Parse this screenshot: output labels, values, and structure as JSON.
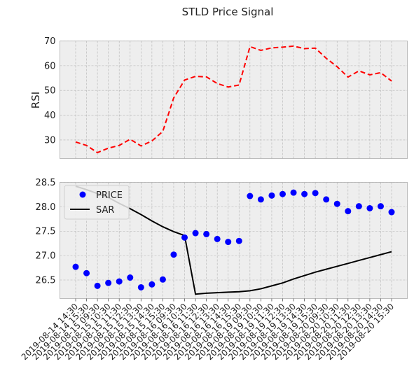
{
  "figure": {
    "title": "STLD Price Signal"
  },
  "chart_data": [
    {
      "type": "line",
      "ylabel": "RSI",
      "ylim": [
        22.5,
        70
      ],
      "yticks": [
        30,
        40,
        50,
        60,
        70
      ],
      "grid": true,
      "series": [
        {
          "values": [
            29.2,
            27.8,
            24.9,
            26.7,
            27.8,
            30.3,
            27.6,
            29.6,
            33.5,
            47.0,
            54.2,
            55.7,
            55.5,
            52.8,
            51.4,
            52.2,
            67.7,
            66.2,
            67.2,
            67.5,
            67.9,
            66.9,
            67.1,
            63.0,
            59.6,
            55.4,
            57.9,
            56.3,
            57.2,
            53.8
          ],
          "color": "#ff0000",
          "dash": "dashed"
        }
      ]
    },
    {
      "type": "scatter",
      "ylim": [
        26.12,
        28.5
      ],
      "yticks": [
        26.5,
        27.0,
        27.5,
        28.0,
        28.5
      ],
      "grid": true,
      "legend": {
        "position": "top-left"
      },
      "categories": [
        "2019-08-14 14:30",
        "2019-08-14 15:30",
        "2019-08-15 09:30",
        "2019-08-15 10:30",
        "2019-08-15 11:30",
        "2019-08-15 12:30",
        "2019-08-15 13:30",
        "2019-08-15 14:30",
        "2019-08-15 15:30",
        "2019-08-16 09:30",
        "2019-08-16 10:30",
        "2019-08-16 11:30",
        "2019-08-16 12:30",
        "2019-08-16 13:30",
        "2019-08-16 14:30",
        "2019-08-16 15:30",
        "2019-08-19 09:30",
        "2019-08-19 10:30",
        "2019-08-19 11:30",
        "2019-08-19 12:30",
        "2019-08-19 13:30",
        "2019-08-19 14:30",
        "2019-08-19 15:30",
        "2019-08-20 09:30",
        "2019-08-20 10:30",
        "2019-08-20 11:30",
        "2019-08-20 12:30",
        "2019-08-20 13:30",
        "2019-08-20 14:30",
        "2019-08-20 15:30"
      ],
      "series": [
        {
          "name": "PRICE",
          "kind": "points",
          "color": "#0000ff",
          "values": [
            26.77,
            26.64,
            26.38,
            26.44,
            26.47,
            26.55,
            26.35,
            26.41,
            26.51,
            27.02,
            27.37,
            27.46,
            27.44,
            27.34,
            27.28,
            27.3,
            28.22,
            28.15,
            28.23,
            28.26,
            28.29,
            28.26,
            28.28,
            28.15,
            28.06,
            27.91,
            28.01,
            27.97,
            28.01,
            27.89
          ]
        },
        {
          "name": "SAR",
          "kind": "line",
          "color": "#000000",
          "values": [
            28.42,
            28.35,
            28.27,
            28.19,
            28.07,
            27.96,
            27.84,
            27.71,
            27.59,
            27.49,
            27.41,
            26.21,
            26.23,
            26.24,
            26.25,
            26.26,
            26.28,
            26.32,
            26.38,
            26.44,
            26.52,
            26.59,
            26.66,
            26.72,
            26.78,
            26.84,
            26.9,
            26.96,
            27.02,
            27.08
          ]
        }
      ]
    }
  ]
}
